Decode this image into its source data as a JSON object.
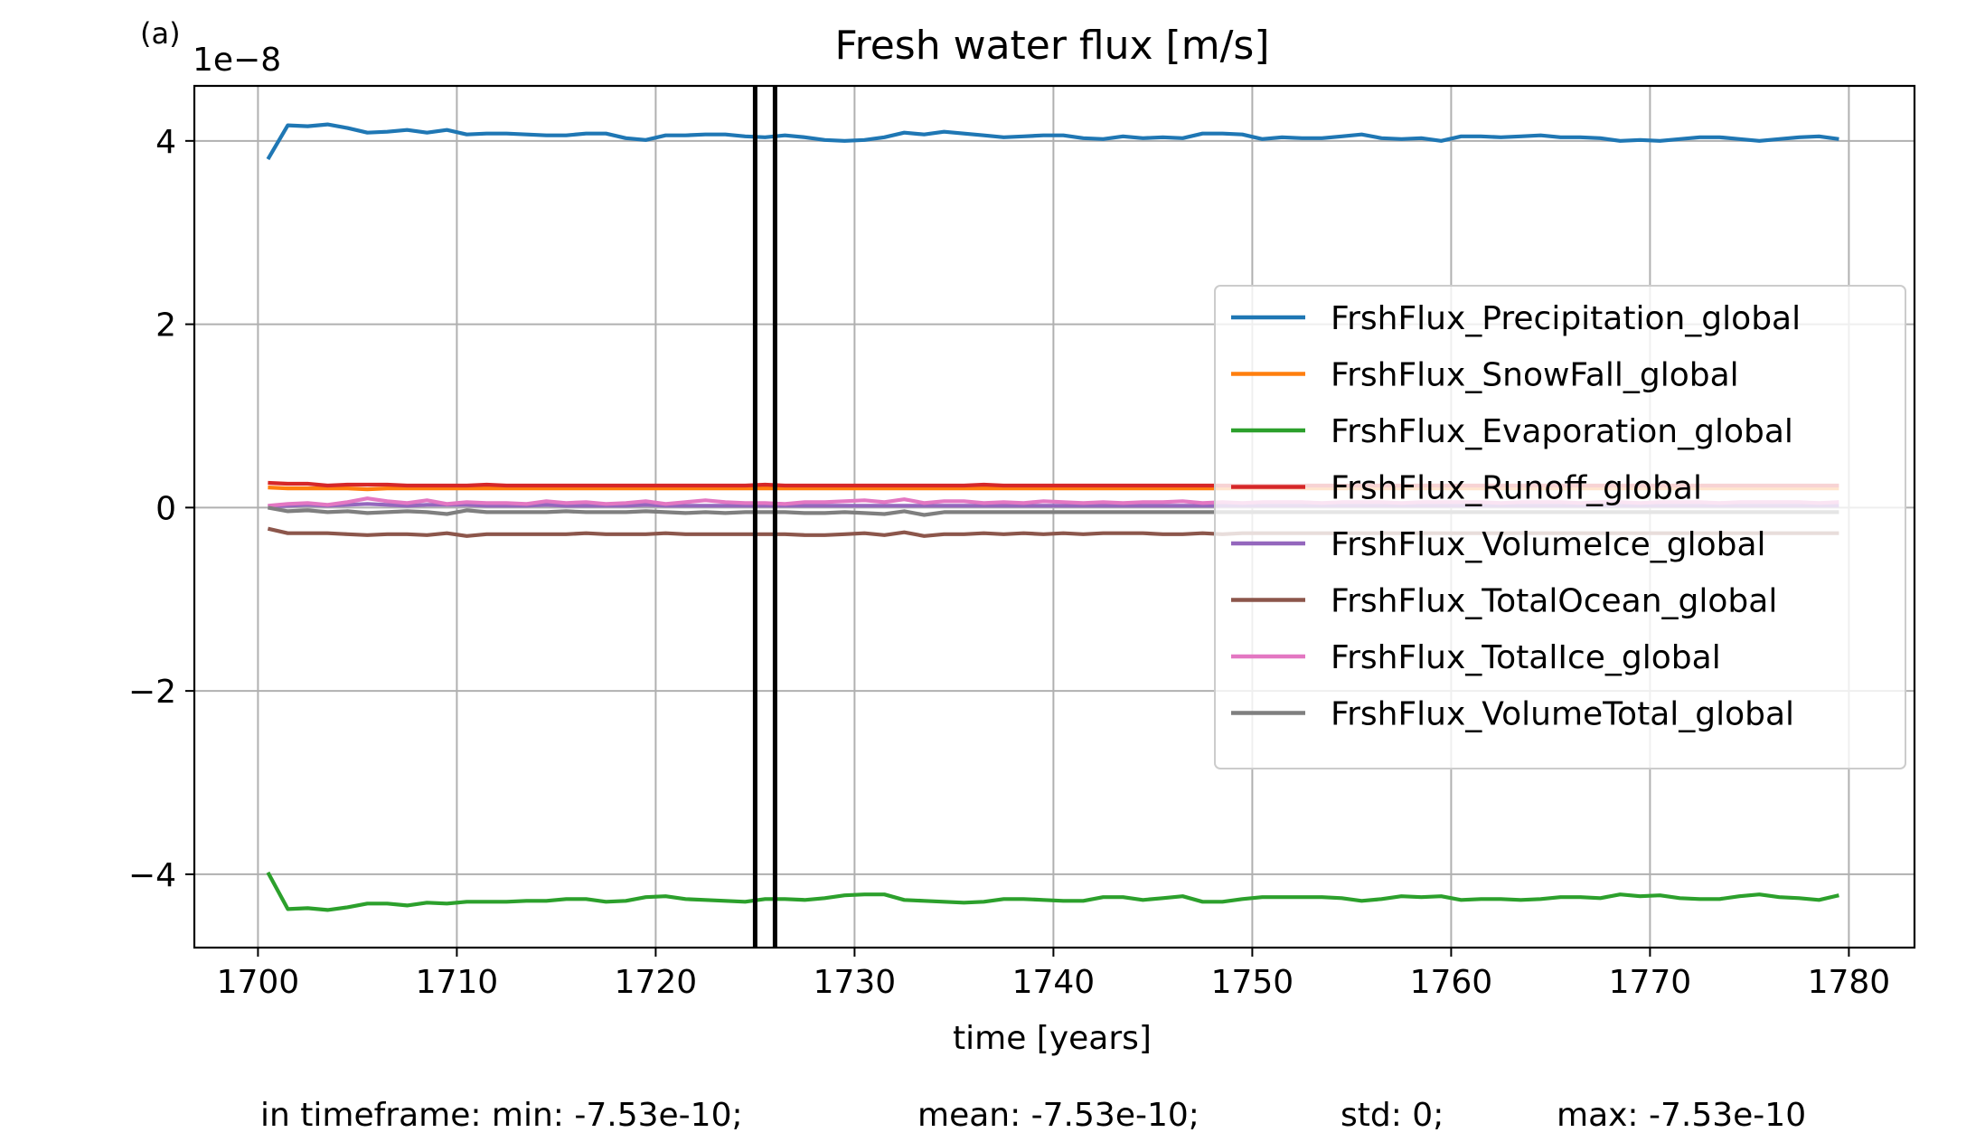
{
  "panel_label": "(a)",
  "footer": {
    "min": "in timeframe: min: -7.53e-10;",
    "mean": "mean: -7.53e-10;",
    "std": "std: 0;",
    "max": "max: -7.53e-10"
  },
  "chart_data": {
    "type": "line",
    "title": "Fresh water flux [m/s]",
    "xlabel": "time [years]",
    "ylabel": "",
    "y_scale_label": "1e−8",
    "xlim": [
      1696.8,
      1783.3
    ],
    "ylim": [
      -4.8,
      4.6
    ],
    "x_ticks": [
      1700,
      1710,
      1720,
      1730,
      1740,
      1750,
      1760,
      1770,
      1780
    ],
    "y_ticks": [
      -4,
      -2,
      0,
      2,
      4
    ],
    "y_tick_labels": [
      "−4",
      "−2",
      "0",
      "2",
      "4"
    ],
    "grid": true,
    "legend_position": "center-right",
    "vertical_lines": [
      1725,
      1726
    ],
    "x": [
      1700.5,
      1701.5,
      1702.5,
      1703.5,
      1704.5,
      1705.5,
      1706.5,
      1707.5,
      1708.5,
      1709.5,
      1710.5,
      1711.5,
      1712.5,
      1713.5,
      1714.5,
      1715.5,
      1716.5,
      1717.5,
      1718.5,
      1719.5,
      1720.5,
      1721.5,
      1722.5,
      1723.5,
      1724.5,
      1725.5,
      1726.5,
      1727.5,
      1728.5,
      1729.5,
      1730.5,
      1731.5,
      1732.5,
      1733.5,
      1734.5,
      1735.5,
      1736.5,
      1737.5,
      1738.5,
      1739.5,
      1740.5,
      1741.5,
      1742.5,
      1743.5,
      1744.5,
      1745.5,
      1746.5,
      1747.5,
      1748.5,
      1749.5,
      1750.5,
      1751.5,
      1752.5,
      1753.5,
      1754.5,
      1755.5,
      1756.5,
      1757.5,
      1758.5,
      1759.5,
      1760.5,
      1761.5,
      1762.5,
      1763.5,
      1764.5,
      1765.5,
      1766.5,
      1767.5,
      1768.5,
      1769.5,
      1770.5,
      1771.5,
      1772.5,
      1773.5,
      1774.5,
      1775.5,
      1776.5,
      1777.5,
      1778.5,
      1779.5
    ],
    "series": [
      {
        "name": "FrshFlux_Precipitation_global",
        "color": "#1f77b4",
        "values": [
          3.8,
          4.17,
          4.16,
          4.18,
          4.14,
          4.09,
          4.1,
          4.12,
          4.09,
          4.12,
          4.07,
          4.08,
          4.08,
          4.07,
          4.06,
          4.06,
          4.08,
          4.08,
          4.03,
          4.01,
          4.06,
          4.06,
          4.07,
          4.07,
          4.05,
          4.04,
          4.06,
          4.04,
          4.01,
          4.0,
          4.01,
          4.04,
          4.09,
          4.07,
          4.1,
          4.08,
          4.06,
          4.04,
          4.05,
          4.06,
          4.06,
          4.03,
          4.02,
          4.05,
          4.03,
          4.04,
          4.03,
          4.08,
          4.08,
          4.07,
          4.02,
          4.04,
          4.03,
          4.03,
          4.05,
          4.07,
          4.03,
          4.02,
          4.03,
          4.0,
          4.05,
          4.05,
          4.04,
          4.05,
          4.06,
          4.04,
          4.04,
          4.03,
          4.0,
          4.01,
          4.0,
          4.02,
          4.04,
          4.04,
          4.02,
          4.0,
          4.02,
          4.04,
          4.05,
          4.02
        ]
      },
      {
        "name": "FrshFlux_SnowFall_global",
        "color": "#ff7f0e",
        "values": [
          0.22,
          0.21,
          0.21,
          0.21,
          0.21,
          0.2,
          0.21,
          0.21,
          0.21,
          0.21,
          0.21,
          0.21,
          0.21,
          0.21,
          0.21,
          0.21,
          0.21,
          0.21,
          0.21,
          0.21,
          0.21,
          0.21,
          0.21,
          0.21,
          0.21,
          0.21,
          0.21,
          0.21,
          0.21,
          0.21,
          0.21,
          0.21,
          0.21,
          0.21,
          0.21,
          0.21,
          0.21,
          0.21,
          0.21,
          0.21,
          0.21,
          0.21,
          0.21,
          0.21,
          0.21,
          0.21,
          0.21,
          0.21,
          0.21,
          0.21,
          0.21,
          0.21,
          0.21,
          0.21,
          0.21,
          0.21,
          0.21,
          0.21,
          0.21,
          0.21,
          0.21,
          0.21,
          0.21,
          0.21,
          0.21,
          0.21,
          0.21,
          0.21,
          0.21,
          0.21,
          0.21,
          0.21,
          0.21,
          0.21,
          0.21,
          0.21,
          0.21,
          0.21,
          0.21,
          0.21
        ]
      },
      {
        "name": "FrshFlux_Evaporation_global",
        "color": "#2ca02c",
        "values": [
          -3.98,
          -4.38,
          -4.37,
          -4.39,
          -4.36,
          -4.32,
          -4.32,
          -4.34,
          -4.31,
          -4.32,
          -4.3,
          -4.3,
          -4.3,
          -4.29,
          -4.29,
          -4.27,
          -4.27,
          -4.3,
          -4.29,
          -4.25,
          -4.24,
          -4.27,
          -4.28,
          -4.29,
          -4.3,
          -4.27,
          -4.27,
          -4.28,
          -4.26,
          -4.23,
          -4.22,
          -4.22,
          -4.28,
          -4.29,
          -4.3,
          -4.31,
          -4.3,
          -4.27,
          -4.27,
          -4.28,
          -4.29,
          -4.29,
          -4.25,
          -4.25,
          -4.28,
          -4.26,
          -4.24,
          -4.3,
          -4.3,
          -4.27,
          -4.25,
          -4.25,
          -4.25,
          -4.25,
          -4.26,
          -4.29,
          -4.27,
          -4.24,
          -4.25,
          -4.24,
          -4.28,
          -4.27,
          -4.27,
          -4.28,
          -4.27,
          -4.25,
          -4.25,
          -4.26,
          -4.22,
          -4.24,
          -4.23,
          -4.26,
          -4.27,
          -4.27,
          -4.24,
          -4.22,
          -4.25,
          -4.26,
          -4.28,
          -4.23
        ]
      },
      {
        "name": "FrshFlux_Runoff_global",
        "color": "#d62728",
        "values": [
          0.27,
          0.26,
          0.26,
          0.24,
          0.25,
          0.25,
          0.25,
          0.24,
          0.24,
          0.24,
          0.24,
          0.25,
          0.24,
          0.24,
          0.24,
          0.24,
          0.24,
          0.24,
          0.24,
          0.24,
          0.24,
          0.24,
          0.24,
          0.24,
          0.24,
          0.25,
          0.24,
          0.24,
          0.24,
          0.24,
          0.24,
          0.24,
          0.24,
          0.24,
          0.24,
          0.24,
          0.25,
          0.24,
          0.24,
          0.24,
          0.24,
          0.24,
          0.24,
          0.24,
          0.24,
          0.24,
          0.24,
          0.24,
          0.24,
          0.24,
          0.24,
          0.24,
          0.24,
          0.24,
          0.24,
          0.24,
          0.24,
          0.24,
          0.24,
          0.24,
          0.24,
          0.24,
          0.24,
          0.24,
          0.24,
          0.24,
          0.24,
          0.24,
          0.24,
          0.24,
          0.24,
          0.24,
          0.24,
          0.24,
          0.24,
          0.24,
          0.24,
          0.24,
          0.24,
          0.24
        ]
      },
      {
        "name": "FrshFlux_VolumeIce_global",
        "color": "#9467bd",
        "values": [
          0.01,
          0.02,
          0.03,
          0.02,
          0.03,
          0.04,
          0.03,
          0.02,
          0.03,
          0.03,
          0.03,
          0.02,
          0.02,
          0.02,
          0.03,
          0.02,
          0.02,
          0.02,
          0.02,
          0.03,
          0.02,
          0.02,
          0.02,
          0.02,
          0.02,
          0.02,
          0.02,
          0.02,
          0.02,
          0.02,
          0.02,
          0.02,
          0.02,
          0.02,
          0.02,
          0.02,
          0.02,
          0.02,
          0.02,
          0.02,
          0.02,
          0.02,
          0.02,
          0.02,
          0.02,
          0.02,
          0.02,
          0.02,
          0.02,
          0.02,
          0.02,
          0.02,
          0.02,
          0.02,
          0.02,
          0.02,
          0.02,
          0.02,
          0.02,
          0.02,
          0.02,
          0.02,
          0.02,
          0.02,
          0.02,
          0.02,
          0.02,
          0.02,
          0.02,
          0.02,
          0.02,
          0.02,
          0.02,
          0.02,
          0.02,
          0.02,
          0.02,
          0.02,
          0.02,
          0.02
        ]
      },
      {
        "name": "FrshFlux_TotalOcean_global",
        "color": "#8c564b",
        "values": [
          -0.23,
          -0.28,
          -0.28,
          -0.28,
          -0.29,
          -0.3,
          -0.29,
          -0.29,
          -0.3,
          -0.28,
          -0.31,
          -0.29,
          -0.29,
          -0.29,
          -0.29,
          -0.29,
          -0.28,
          -0.29,
          -0.29,
          -0.29,
          -0.28,
          -0.29,
          -0.29,
          -0.29,
          -0.29,
          -0.29,
          -0.29,
          -0.3,
          -0.3,
          -0.29,
          -0.28,
          -0.3,
          -0.27,
          -0.31,
          -0.29,
          -0.29,
          -0.28,
          -0.29,
          -0.28,
          -0.29,
          -0.28,
          -0.29,
          -0.28,
          -0.28,
          -0.28,
          -0.29,
          -0.29,
          -0.28,
          -0.29,
          -0.28,
          -0.28,
          -0.28,
          -0.28,
          -0.28,
          -0.28,
          -0.28,
          -0.28,
          -0.28,
          -0.28,
          -0.28,
          -0.28,
          -0.28,
          -0.28,
          -0.28,
          -0.28,
          -0.28,
          -0.28,
          -0.28,
          -0.28,
          -0.28,
          -0.28,
          -0.28,
          -0.28,
          -0.28,
          -0.28,
          -0.28,
          -0.28,
          -0.28,
          -0.28,
          -0.28
        ]
      },
      {
        "name": "FrshFlux_TotalIce_global",
        "color": "#e377c2",
        "values": [
          0.02,
          0.04,
          0.05,
          0.03,
          0.06,
          0.1,
          0.07,
          0.05,
          0.08,
          0.04,
          0.06,
          0.05,
          0.05,
          0.04,
          0.07,
          0.05,
          0.06,
          0.04,
          0.05,
          0.07,
          0.04,
          0.06,
          0.08,
          0.06,
          0.05,
          0.05,
          0.04,
          0.06,
          0.06,
          0.07,
          0.08,
          0.06,
          0.09,
          0.05,
          0.07,
          0.07,
          0.05,
          0.06,
          0.05,
          0.07,
          0.06,
          0.05,
          0.06,
          0.05,
          0.06,
          0.06,
          0.07,
          0.05,
          0.06,
          0.05,
          0.06,
          0.06,
          0.06,
          0.05,
          0.06,
          0.06,
          0.06,
          0.05,
          0.06,
          0.06,
          0.06,
          0.06,
          0.05,
          0.06,
          0.06,
          0.06,
          0.05,
          0.06,
          0.06,
          0.05,
          0.06,
          0.06,
          0.06,
          0.05,
          0.06,
          0.06,
          0.06,
          0.06,
          0.05,
          0.06
        ]
      },
      {
        "name": "FrshFlux_VolumeTotal_global",
        "color": "#7f7f7f",
        "values": [
          0.0,
          -0.04,
          -0.03,
          -0.05,
          -0.04,
          -0.06,
          -0.05,
          -0.04,
          -0.05,
          -0.07,
          -0.03,
          -0.05,
          -0.05,
          -0.05,
          -0.05,
          -0.04,
          -0.05,
          -0.05,
          -0.05,
          -0.04,
          -0.05,
          -0.06,
          -0.05,
          -0.06,
          -0.05,
          -0.05,
          -0.05,
          -0.06,
          -0.06,
          -0.05,
          -0.06,
          -0.07,
          -0.04,
          -0.08,
          -0.05,
          -0.05,
          -0.05,
          -0.05,
          -0.05,
          -0.05,
          -0.05,
          -0.05,
          -0.05,
          -0.05,
          -0.05,
          -0.05,
          -0.05,
          -0.05,
          -0.05,
          -0.05,
          -0.05,
          -0.05,
          -0.05,
          -0.05,
          -0.05,
          -0.05,
          -0.05,
          -0.05,
          -0.05,
          -0.05,
          -0.05,
          -0.05,
          -0.05,
          -0.05,
          -0.05,
          -0.05,
          -0.05,
          -0.05,
          -0.05,
          -0.05,
          -0.05,
          -0.05,
          -0.05,
          -0.05,
          -0.05,
          -0.05,
          -0.05,
          -0.05,
          -0.05,
          -0.05
        ]
      }
    ]
  }
}
